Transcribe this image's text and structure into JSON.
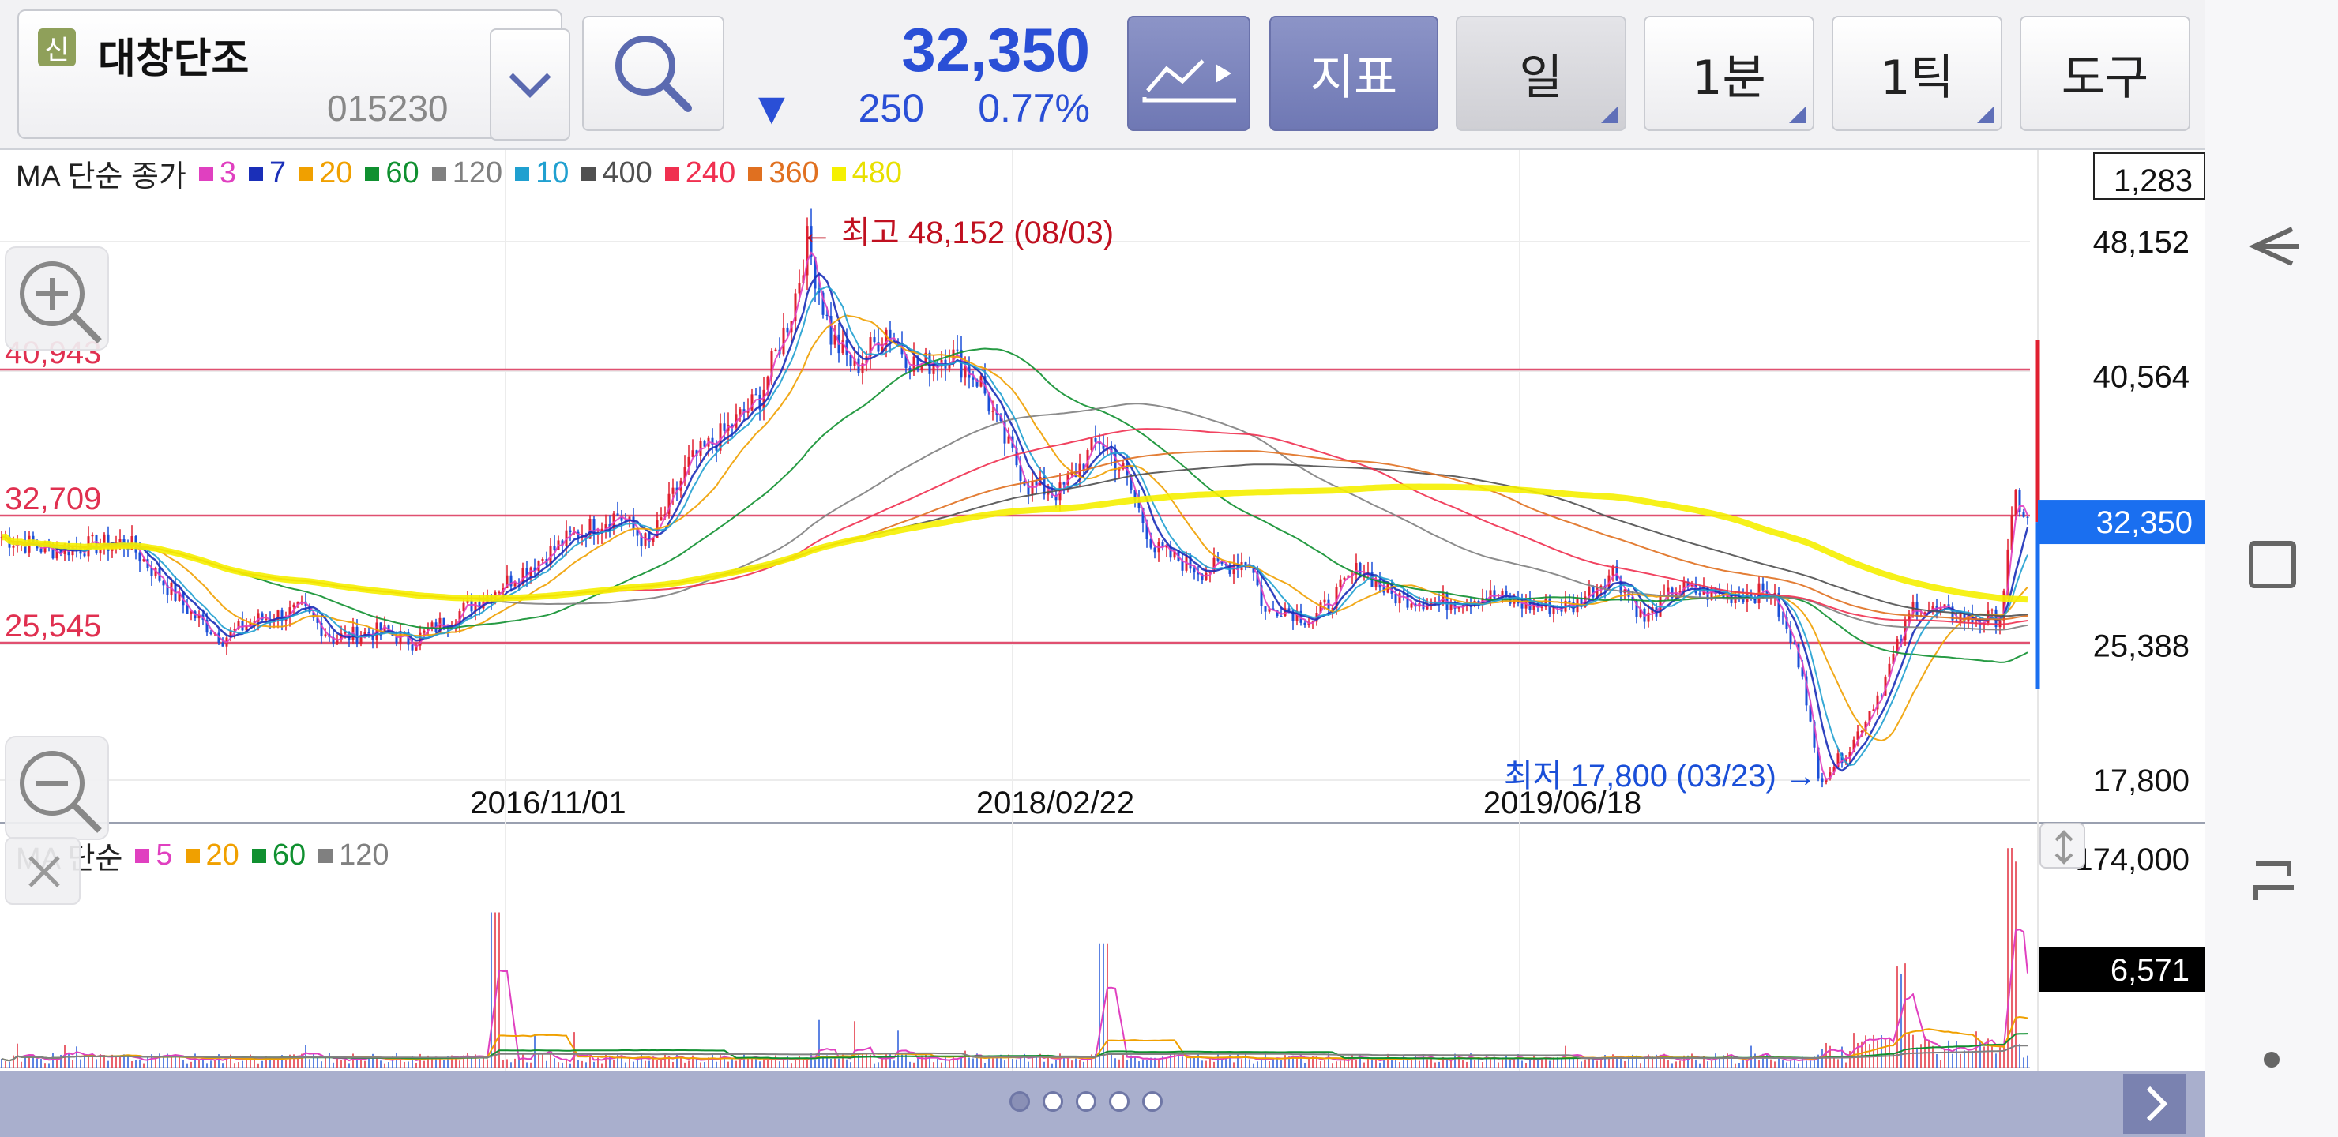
{
  "stock": {
    "badge": "신",
    "name": "대창단조",
    "code": "015230",
    "price": "32,350",
    "change_arrow": "▼",
    "change_value": "250",
    "change_percent": "0.77%"
  },
  "toolbar": {
    "indicator_label": "지표",
    "period_label": "일",
    "minute_label": "1분",
    "tick_label": "1틱",
    "tools_label": "도구"
  },
  "price_legend": {
    "prefix": "MA 단순 종가",
    "items": [
      {
        "value": "3",
        "color": "#e040c0"
      },
      {
        "value": "7",
        "color": "#1a2fb8"
      },
      {
        "value": "20",
        "color": "#f0a000"
      },
      {
        "value": "60",
        "color": "#109030"
      },
      {
        "value": "120",
        "color": "#808080"
      },
      {
        "value": "10",
        "color": "#20a0d0"
      },
      {
        "value": "400",
        "color": "#505050"
      },
      {
        "value": "240",
        "color": "#f03050"
      },
      {
        "value": "360",
        "color": "#e07020"
      },
      {
        "value": "480",
        "color": "#f5f000"
      }
    ]
  },
  "volume_legend": {
    "prefix": "MA 단순",
    "items": [
      {
        "value": "5",
        "color": "#e040c0"
      },
      {
        "value": "20",
        "color": "#f0a000"
      },
      {
        "value": "60",
        "color": "#109030"
      },
      {
        "value": "120",
        "color": "#808080"
      }
    ]
  },
  "price_axis": {
    "top_box": "1,283",
    "labels": [
      "48,152",
      "40,564",
      "25,388",
      "17,800"
    ],
    "current_box": "32,350"
  },
  "horizontal_lines": {
    "upper": "40,943",
    "middle": "32,709",
    "lower": "25,545"
  },
  "annotations": {
    "high": "← 최고 48,152 (08/03)",
    "low": "최저 17,800 (03/23) →"
  },
  "date_labels": [
    "2016/11/01",
    "2018/02/22",
    "2019/06/18"
  ],
  "volume_axis": {
    "top": "174,000",
    "current_box": "6,571"
  },
  "colors": {
    "up": "#e02030",
    "down": "#1a4fd8",
    "line_red": "#e04060",
    "accent_blue": "#1a6ff0"
  },
  "pager": {
    "total": 5,
    "active": 0
  }
}
